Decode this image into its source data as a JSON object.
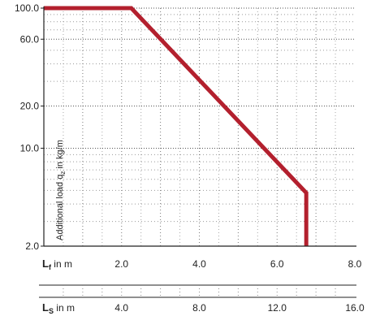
{
  "chart_data": {
    "type": "line",
    "title": "",
    "ylabel": {
      "main": "Additional load q",
      "sub": "z",
      "unit": " in kg/m"
    },
    "y_scale": "log",
    "ylim": [
      2.0,
      100.0
    ],
    "y_ticks": [
      {
        "value": 100.0,
        "label": "100.0"
      },
      {
        "value": 60.0,
        "label": "60.0"
      },
      {
        "value": 20.0,
        "label": "20.0"
      },
      {
        "value": 10.0,
        "label": "10.0"
      },
      {
        "value": 2.0,
        "label": "2.0"
      }
    ],
    "xlim": [
      0,
      8.0
    ],
    "x_axes": [
      {
        "name_main": "L",
        "name_sub": "f",
        "unit": " in m",
        "range": [
          0,
          8.0
        ],
        "ticks": [
          {
            "value": 2.0,
            "label": "2.0"
          },
          {
            "value": 4.0,
            "label": "4.0"
          },
          {
            "value": 6.0,
            "label": "6.0"
          },
          {
            "value": 8.0,
            "label": "8.0"
          }
        ]
      },
      {
        "name_main": "L",
        "name_sub": "S",
        "unit": " in m",
        "range": [
          0,
          16.0
        ],
        "ticks": [
          {
            "value": 4.0,
            "label": "4.0"
          },
          {
            "value": 8.0,
            "label": "8.0"
          },
          {
            "value": 12.0,
            "label": "12.0"
          },
          {
            "value": 16.0,
            "label": "16.0"
          }
        ]
      }
    ],
    "series": [
      {
        "color": "#b3202e",
        "points": [
          {
            "x": 0.0,
            "y": 100.0
          },
          {
            "x": 2.25,
            "y": 100.0
          },
          {
            "x": 6.75,
            "y": 4.8
          },
          {
            "x": 6.75,
            "y": 2.0
          }
        ]
      }
    ],
    "grid": true
  }
}
